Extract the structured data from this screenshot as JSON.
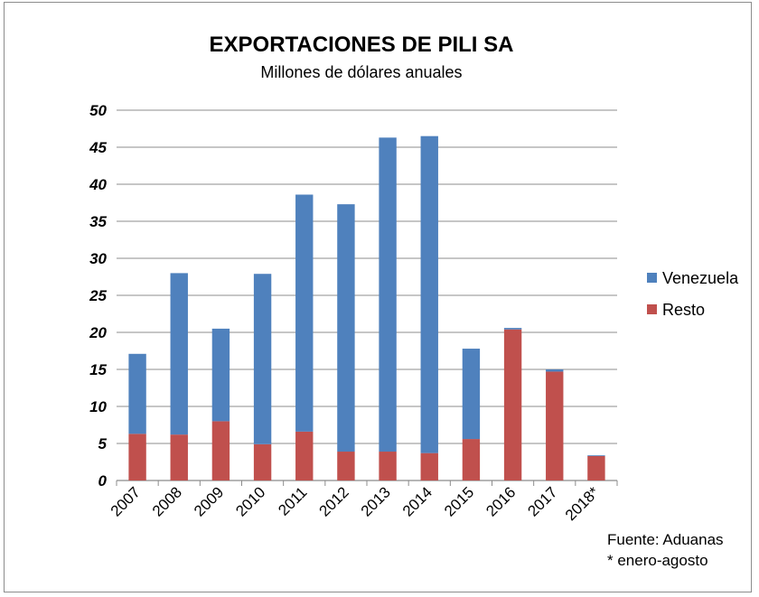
{
  "chart_data": {
    "type": "bar",
    "stacked": true,
    "title": "EXPORTACIONES DE PILI SA",
    "subtitle": "Millones de dólares anuales",
    "xlabel": "",
    "ylabel": "",
    "ylim": [
      0,
      50
    ],
    "yticks": [
      0,
      5,
      10,
      15,
      20,
      25,
      30,
      35,
      40,
      45,
      50
    ],
    "grid": true,
    "legend_position": "right",
    "categories": [
      "2007",
      "2008",
      "2009",
      "2010",
      "2011",
      "2012",
      "2013",
      "2014",
      "2015",
      "2016",
      "2017",
      "2018*"
    ],
    "series": [
      {
        "name": "Venezuela",
        "color": "#4f81bd",
        "values": [
          10.8,
          21.8,
          12.5,
          23.0,
          32.0,
          33.4,
          42.4,
          42.8,
          12.2,
          0.2,
          0.3,
          0.1
        ]
      },
      {
        "name": "Resto",
        "color": "#c0504d",
        "values": [
          6.3,
          6.2,
          8.0,
          4.9,
          6.6,
          3.9,
          3.9,
          3.7,
          5.6,
          20.4,
          14.7,
          3.3
        ]
      }
    ]
  },
  "source": {
    "line1": "Fuente: Aduanas",
    "line2": "* enero-agosto"
  }
}
